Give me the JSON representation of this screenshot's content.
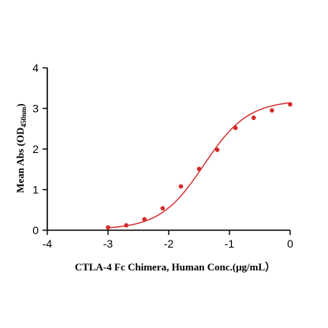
{
  "chart_data": {
    "type": "scatter",
    "xlabel": "CTLA-4 Fc Chimera, Human  Conc.(μg/mL）",
    "ylabel_main": "Mean Abs (OD",
    "ylabel_sub": "450nm",
    "ylabel_end": ")",
    "xlim": [
      -4,
      0
    ],
    "ylim": [
      0,
      4
    ],
    "xticks": [
      "-4",
      "-3",
      "-2",
      "-1",
      "0"
    ],
    "yticks": [
      "0",
      "1",
      "2",
      "3",
      "4"
    ],
    "grid": false,
    "legend": "none",
    "series": [
      {
        "color": "#d42a2a",
        "x": [
          -3.0,
          -2.7,
          -2.4,
          -2.1,
          -1.8,
          -1.5,
          -1.2,
          -0.9,
          -0.6,
          -0.3,
          0.0
        ],
        "y": [
          0.07,
          0.12,
          0.27,
          0.54,
          1.08,
          1.51,
          1.98,
          2.52,
          2.77,
          2.95,
          3.1
        ],
        "fit": {
          "model": "4PL",
          "bottom": 0.02,
          "top": 3.2,
          "logEC50": -1.42,
          "hill": 1.2
        }
      }
    ]
  }
}
